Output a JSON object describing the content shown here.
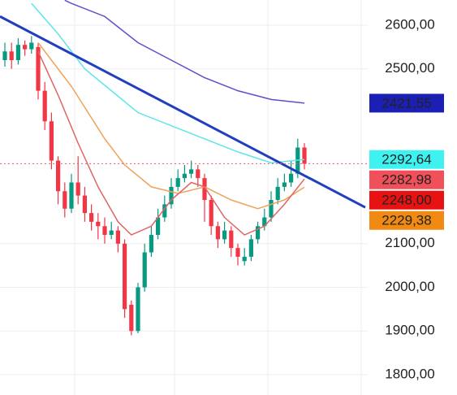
{
  "chart_data": {
    "type": "candlestick",
    "up_color": "#089981",
    "down_color": "#f23645",
    "open": [
      2520,
      2540,
      2520,
      2555,
      2545,
      2550,
      2450,
      2380,
      2290,
      2220,
      2180,
      2240,
      2210,
      2170,
      2150,
      2140,
      2120,
      2130,
      2100,
      1960,
      1900,
      2000,
      2080,
      2120,
      2160,
      2190,
      2230,
      2250,
      2260,
      2270,
      2250,
      2200,
      2140,
      2110,
      2130,
      2090,
      2060,
      2070,
      2110,
      2140,
      2160,
      2200,
      2230,
      2240,
      2260,
      2320
    ],
    "high": [
      2560,
      2560,
      2570,
      2565,
      2575,
      2560,
      2470,
      2400,
      2300,
      2240,
      2260,
      2300,
      2230,
      2190,
      2170,
      2160,
      2150,
      2140,
      2110,
      1970,
      2010,
      2100,
      2140,
      2180,
      2210,
      2250,
      2270,
      2280,
      2290,
      2280,
      2260,
      2210,
      2150,
      2150,
      2140,
      2100,
      2090,
      2120,
      2150,
      2180,
      2220,
      2250,
      2260,
      2290,
      2340,
      2330
    ],
    "low": [
      2505,
      2500,
      2510,
      2530,
      2535,
      2430,
      2360,
      2270,
      2190,
      2160,
      2170,
      2190,
      2150,
      2130,
      2110,
      2100,
      2110,
      2080,
      1930,
      1890,
      1895,
      1990,
      2070,
      2110,
      2150,
      2180,
      2220,
      2240,
      2250,
      2230,
      2150,
      2120,
      2090,
      2100,
      2070,
      2050,
      2050,
      2060,
      2100,
      2130,
      2150,
      2190,
      2220,
      2230,
      2250,
      2270
    ],
    "close": [
      2540,
      2520,
      2555,
      2545,
      2560,
      2450,
      2380,
      2290,
      2220,
      2180,
      2240,
      2210,
      2170,
      2150,
      2140,
      2120,
      2130,
      2100,
      1950,
      1900,
      2000,
      2080,
      2120,
      2160,
      2190,
      2230,
      2250,
      2260,
      2270,
      2250,
      2200,
      2140,
      2110,
      2130,
      2090,
      2070,
      2070,
      2110,
      2140,
      2160,
      2200,
      2230,
      2240,
      2260,
      2320,
      2282.98
    ],
    "lines": [
      {
        "color": "#5e4fc9",
        "x": [
          9,
          10,
          15,
          20,
          25,
          30,
          35,
          40,
          45
        ],
        "values": [
          2657,
          2650,
          2620,
          2560,
          2520,
          2480,
          2450,
          2430,
          2421.55
        ]
      },
      {
        "color": "#5ee6ea",
        "x": [
          4,
          8,
          12,
          16,
          20,
          25,
          30,
          35,
          40,
          45
        ],
        "values": [
          2650,
          2580,
          2500,
          2450,
          2400,
          2370,
          2340,
          2310,
          2285,
          2292.64
        ]
      },
      {
        "color": "#f0a35a",
        "x": [
          5,
          10,
          15,
          18,
          22,
          26,
          30,
          34,
          38,
          42,
          45
        ],
        "values": [
          2560,
          2460,
          2340,
          2280,
          2230,
          2215,
          2230,
          2200,
          2180,
          2200,
          2229.38
        ]
      },
      {
        "color": "#e06464",
        "x": [
          5,
          8,
          11,
          14,
          17,
          19,
          22,
          25,
          28,
          30,
          33,
          36,
          39,
          42,
          45
        ],
        "values": [
          2540,
          2440,
          2330,
          2230,
          2150,
          2120,
          2140,
          2200,
          2240,
          2230,
          2160,
          2120,
          2140,
          2190,
          2248
        ]
      }
    ],
    "trendline": {
      "color": "#1f3fbf",
      "x": [
        -0.73,
        54.15
      ],
      "values": [
        2620,
        2183
      ]
    },
    "current_price": 2282.98,
    "ylim": [
      1753.5,
      2657.7
    ],
    "yticks": [
      {
        "value": 2600,
        "label": "2600,00"
      },
      {
        "value": 2500,
        "label": "2500,00"
      },
      {
        "value": 2100,
        "label": "2100,00"
      },
      {
        "value": 2000,
        "label": "2000,00"
      },
      {
        "value": 1900,
        "label": "1900,00"
      },
      {
        "value": 1800,
        "label": "1800,00"
      }
    ],
    "price_labels": [
      {
        "value": 2421.55,
        "label": "2421,55",
        "color": "#1c1fb3",
        "text_color": "#ffffff"
      },
      {
        "value": 2292.64,
        "label": "2292,64",
        "color": "#3ff2f2",
        "text_color": "#1a1a1a"
      },
      {
        "value": 2282.98,
        "label": "2282,98",
        "color": "#f0505a",
        "text_color": "#ffffff"
      },
      {
        "value": 2248.0,
        "label": "2248,00",
        "color": "#e81212",
        "text_color": "#ffffff"
      },
      {
        "value": 2229.38,
        "label": "2229,38",
        "color": "#f08a12",
        "text_color": "#ffffff"
      }
    ]
  }
}
